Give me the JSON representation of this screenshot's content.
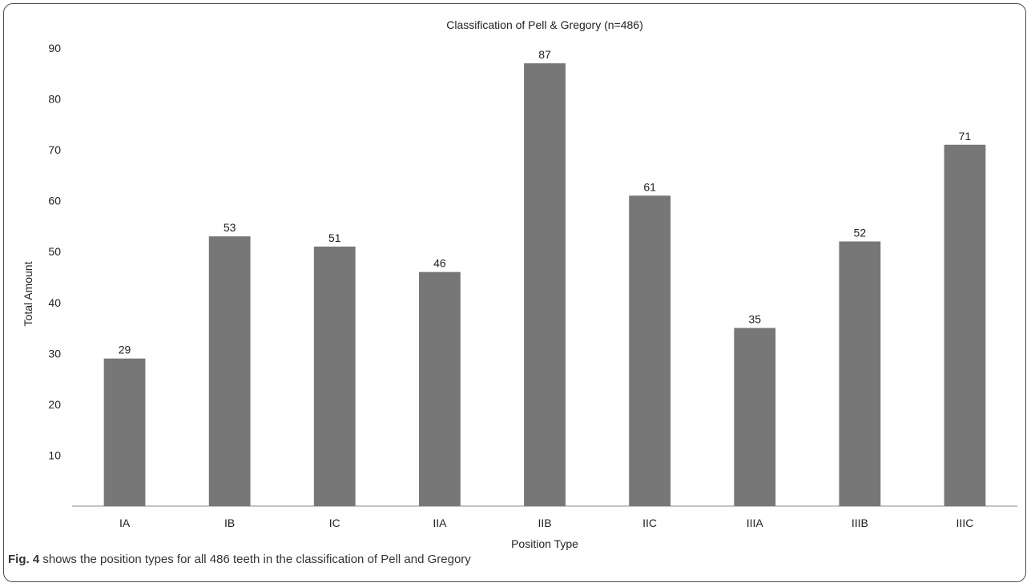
{
  "chart_data": {
    "type": "bar",
    "title": "Classification of Pell & Gregory (n=486)",
    "xlabel": "Position Type",
    "ylabel": "Total Amount",
    "categories": [
      "IA",
      "IB",
      "IC",
      "IIA",
      "IIB",
      "IIC",
      "IIIA",
      "IIIB",
      "IIIC"
    ],
    "values": [
      29,
      53,
      51,
      46,
      87,
      61,
      35,
      52,
      71
    ],
    "ylim": [
      0,
      90
    ],
    "yticks": [
      10,
      20,
      30,
      40,
      50,
      60,
      70,
      80,
      90
    ],
    "grid": false,
    "legend": "none",
    "bar_color": "#777777",
    "data_labels": true
  },
  "caption": {
    "label": "Fig. 4",
    "text": " shows the position types for all 486 teeth in the classification of Pell and Gregory"
  }
}
